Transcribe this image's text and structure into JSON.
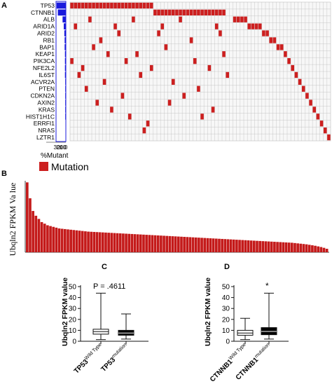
{
  "colors": {
    "mutation": "#cc1f1f",
    "frequency_bar": "#1a1adc",
    "expression_bar": "#c41a1a",
    "grid": "#bdbdbd"
  },
  "chart_data": [
    {
      "panel": "A",
      "type": "heatmap",
      "genes": [
        "TP53",
        "CTNNB1",
        "ALB",
        "ARID1A",
        "ARID2",
        "RB1",
        "BAP1",
        "KEAP1",
        "PIK3CA",
        "NFE2L2",
        "IL6ST",
        "ACVR2A",
        "PTEN",
        "CDKN2A",
        "AXIN2",
        "KRAS",
        "HIST1H1C",
        "ERRFI1",
        "NRAS",
        "LZTR1"
      ],
      "percent_mutant": [
        31,
        27,
        11,
        7,
        5,
        4,
        4,
        3,
        3,
        3,
        3,
        2,
        2,
        2,
        2,
        2,
        2,
        1,
        1,
        1
      ],
      "xlabel": "%Mutant",
      "xticks": [
        "30",
        "20",
        "10",
        "0"
      ],
      "legend": [
        "Mutation"
      ],
      "n_samples": 72,
      "mutations": [
        [
          0,
          1,
          2,
          3,
          4,
          5,
          6,
          7,
          8,
          9,
          10,
          11,
          12,
          13,
          14,
          15,
          16,
          17,
          18,
          19,
          20,
          21,
          22
        ],
        [
          23,
          24,
          25,
          26,
          27,
          28,
          29,
          30,
          31,
          32,
          33,
          34,
          35,
          36,
          37,
          38,
          39,
          40,
          41,
          42
        ],
        [
          5,
          17,
          30,
          45,
          46,
          47,
          48
        ],
        [
          1,
          12,
          25,
          40,
          49,
          50,
          51,
          52
        ],
        [
          13,
          24,
          41,
          53,
          54
        ],
        [
          8,
          33,
          55,
          56
        ],
        [
          6,
          26,
          57,
          58
        ],
        [
          10,
          18,
          42,
          59
        ],
        [
          0,
          15,
          34,
          60
        ],
        [
          3,
          22,
          38,
          61
        ],
        [
          2,
          19,
          43,
          62
        ],
        [
          9,
          28,
          63
        ],
        [
          4,
          35,
          64
        ],
        [
          14,
          31,
          65
        ],
        [
          7,
          27,
          66
        ],
        [
          11,
          39,
          67
        ],
        [
          16,
          36,
          68
        ],
        [
          21,
          69
        ],
        [
          20,
          70
        ],
        [
          71
        ]
      ]
    },
    {
      "panel": "B",
      "type": "bar",
      "ylabel": "Ubqln2 FPKM Va lue",
      "values": [
        44,
        34,
        26,
        23,
        21,
        19,
        18,
        17,
        16.5,
        16,
        15.5,
        15,
        14.8,
        14.6,
        14.4,
        14.2,
        14,
        13.8,
        13.6,
        13.4,
        13.2,
        13,
        12.9,
        12.8,
        12.7,
        12.6,
        12.5,
        12.4,
        12.3,
        12.2,
        12.1,
        12,
        11.9,
        11.8,
        11.7,
        11.6,
        11.5,
        11.4,
        11.3,
        11.2,
        11.1,
        11,
        10.9,
        10.8,
        10.7,
        10.6,
        10.5,
        10.4,
        10.3,
        10.2,
        10.1,
        10,
        9.9,
        9.8,
        9.7,
        9.6,
        9.5,
        9.4,
        9.3,
        9.2,
        9.1,
        9,
        8.9,
        8.8,
        8.7,
        8.6,
        8.5,
        8.4,
        8.3,
        8.2,
        8.1,
        8,
        7.9,
        7.8,
        7.7,
        7.6,
        7.5,
        7.4,
        7.3,
        7.2,
        7.1,
        7,
        6.9,
        6.8,
        6.7,
        6.6,
        6.5,
        6.4,
        6.3,
        6.2,
        6.1,
        6,
        5.8,
        5.6,
        5.4,
        5.2,
        5,
        4.7,
        4.4,
        4.1,
        3.7,
        3.3,
        2.8,
        2.2
      ]
    },
    {
      "panel": "C",
      "type": "box",
      "ylabel": "Ubqln2 FPKM value",
      "ylim": [
        0,
        50
      ],
      "yticks": [
        0,
        10,
        20,
        30,
        40,
        50
      ],
      "annotation": "P = .4611",
      "groups": [
        {
          "label_main": "TP53",
          "label_sup": "Wild Type",
          "min": 1.5,
          "q1": 6.5,
          "median": 8.8,
          "q3": 11,
          "max": 44,
          "fill": "#ffffff"
        },
        {
          "label_main": "TP53",
          "label_sup": "mutation",
          "min": 2,
          "q1": 5.5,
          "median": 7.5,
          "q3": 10,
          "max": 25,
          "fill": "#000000"
        }
      ]
    },
    {
      "panel": "D",
      "type": "box",
      "ylabel": "Ubqln2 FPKM value",
      "ylim": [
        0,
        50
      ],
      "yticks": [
        0,
        10,
        20,
        30,
        40,
        50
      ],
      "annotation": "*",
      "groups": [
        {
          "label_main": "CTNNB1",
          "label_sup": "Wild Type",
          "min": 1.5,
          "q1": 5.5,
          "median": 7.5,
          "q3": 10,
          "max": 21,
          "fill": "#ffffff"
        },
        {
          "label_main": "CTNNB1",
          "label_sup": "mutation",
          "min": 2,
          "q1": 6,
          "median": 9,
          "q3": 12.5,
          "max": 44,
          "fill": "#000000"
        }
      ]
    }
  ]
}
